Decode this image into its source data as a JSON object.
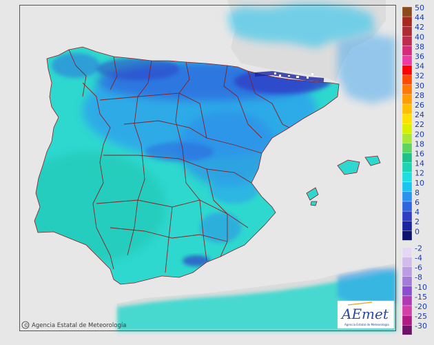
{
  "credit": {
    "copyright_symbol": "©",
    "text": "Agencia Estatal de Meteorología"
  },
  "logo": {
    "wordmark": "AEmet",
    "subtitle": "Agencia Estatal de Meteorología"
  },
  "legend": {
    "stops": [
      {
        "label": "50",
        "color": "#8a4a1a"
      },
      {
        "label": "44",
        "color": "#a8281e"
      },
      {
        "label": "42",
        "color": "#b02a32"
      },
      {
        "label": "40",
        "color": "#c02a4c"
      },
      {
        "label": "38",
        "color": "#d8287a"
      },
      {
        "label": "36",
        "color": "#ee3aa4"
      },
      {
        "label": "34",
        "color": "#ff0000"
      },
      {
        "label": "32",
        "color": "#ff4a00"
      },
      {
        "label": "30",
        "color": "#ff7800"
      },
      {
        "label": "28",
        "color": "#ff9c00"
      },
      {
        "label": "26",
        "color": "#ffbf00"
      },
      {
        "label": "24",
        "color": "#ffe000"
      },
      {
        "label": "22",
        "color": "#d8f000"
      },
      {
        "label": "20",
        "color": "#a8e63a"
      },
      {
        "label": "18",
        "color": "#5ed45e"
      },
      {
        "label": "16",
        "color": "#1ec08e"
      },
      {
        "label": "14",
        "color": "#1ed2b4"
      },
      {
        "label": "12",
        "color": "#1edede"
      },
      {
        "label": "10",
        "color": "#1ec4f0"
      },
      {
        "label": "8",
        "color": "#2b93ee"
      },
      {
        "label": "6",
        "color": "#2f66de"
      },
      {
        "label": "4",
        "color": "#2e3fc6"
      },
      {
        "label": "2",
        "color": "#1a24a0"
      },
      {
        "label": "0",
        "color": "#0c1470"
      },
      {
        "label": "-2",
        "color": "#e6d8f4"
      },
      {
        "label": "-4",
        "color": "#d2bcec"
      },
      {
        "label": "-6",
        "color": "#bc9ce2"
      },
      {
        "label": "-8",
        "color": "#a47cd8"
      },
      {
        "label": "-10",
        "color": "#8c4ed0"
      },
      {
        "label": "-15",
        "color": "#b03ab4"
      },
      {
        "label": "-20",
        "color": "#d040a8"
      },
      {
        "label": "-25",
        "color": "#b01a86"
      },
      {
        "label": "-30",
        "color": "#6e1468"
      }
    ]
  },
  "colors": {
    "sea_and_foreign_land": "#e7e7e7",
    "field_base": "#2ed8cf",
    "field_cool": "#2fa0ee",
    "field_cold": "#2f6ee4",
    "border_lines": "#8a1e1e",
    "snow_peaks": "#ffffff"
  }
}
